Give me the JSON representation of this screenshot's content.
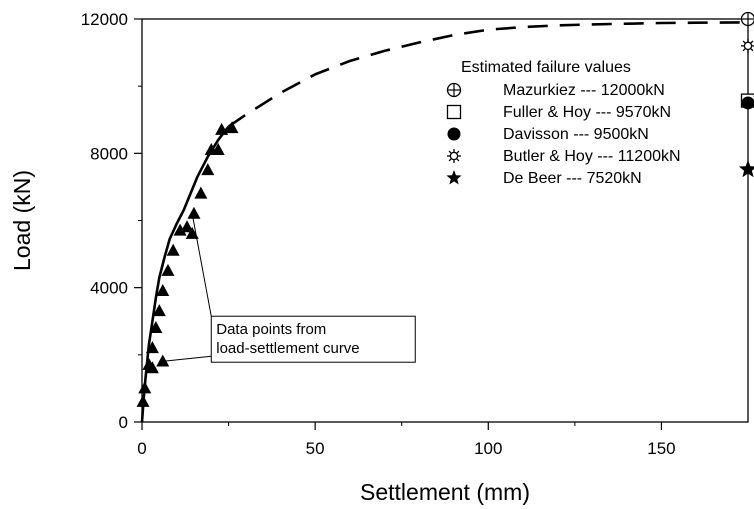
{
  "chart_data": {
    "type": "line",
    "title": "",
    "xlabel": "Settlement (mm)",
    "ylabel": "Load (kN)",
    "xlim": [
      0,
      175
    ],
    "ylim": [
      0,
      12000
    ],
    "x_ticks": [
      0,
      50,
      100,
      150
    ],
    "y_ticks": [
      0,
      4000,
      8000,
      12000
    ],
    "grid": false,
    "series": [
      {
        "style": "solid",
        "x": [
          0,
          0.5,
          1,
          2,
          3,
          4,
          5,
          6.5,
          8,
          10,
          12,
          14,
          16,
          19,
          22,
          25
        ],
        "y": [
          0,
          700,
          1300,
          2300,
          3000,
          3700,
          4300,
          4900,
          5450,
          5900,
          6300,
          6800,
          7300,
          7900,
          8400,
          8800
        ]
      },
      {
        "style": "dashed",
        "x": [
          25,
          30,
          40,
          50,
          60,
          70,
          80,
          90,
          100,
          110,
          120,
          130,
          140,
          150,
          160,
          175
        ],
        "y": [
          8800,
          9150,
          9800,
          10350,
          10750,
          11050,
          11300,
          11520,
          11680,
          11760,
          11810,
          11840,
          11860,
          11880,
          11890,
          11900
        ]
      },
      {
        "name": "Data points from load-settlement curve",
        "style": "markers",
        "marker": "triangle",
        "x": [
          0.3,
          0.8,
          2,
          3,
          4,
          5,
          6,
          7.5,
          9,
          11,
          13,
          15,
          17,
          19,
          20,
          22,
          23,
          26,
          14.5,
          6,
          3
        ],
        "y": [
          600,
          1000,
          1700,
          2200,
          2800,
          3300,
          3900,
          4500,
          5100,
          5700,
          5800,
          6200,
          6800,
          7500,
          8100,
          8100,
          8700,
          8750,
          5600,
          1800,
          1600
        ]
      }
    ],
    "annotation": {
      "lines": [
        "Data points from",
        "load-settlement curve"
      ],
      "x": 20,
      "y": 3150,
      "pointer_targets": [
        {
          "x": 14.5,
          "y": 6200
        },
        {
          "x": 5.5,
          "y": 1800
        }
      ]
    },
    "legend": {
      "title": "Estimated failure values",
      "position": "top-right",
      "entries": [
        {
          "marker": "circle-plus",
          "label": "Mazurkiez --- 12000kN",
          "value": 12000
        },
        {
          "marker": "square",
          "label": "Fuller & Hoy --- 9570kN",
          "value": 9570
        },
        {
          "marker": "filled-circle",
          "label": "Davisson --- 9500kN",
          "value": 9500
        },
        {
          "marker": "sun",
          "label": "Butler & Hoy --- 11200kN",
          "value": 11200
        },
        {
          "marker": "star",
          "label": "De Beer --- 7520kN",
          "value": 7520
        }
      ],
      "failure_marker_x": 175
    }
  }
}
